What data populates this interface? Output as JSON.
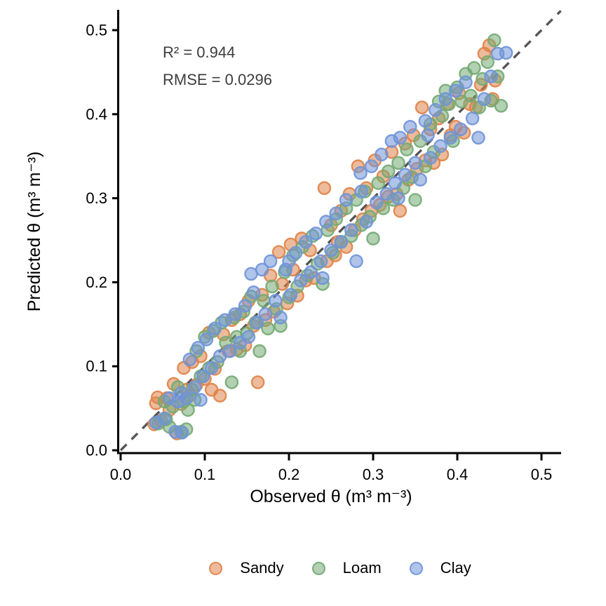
{
  "figure": {
    "background": "#FFFFFF",
    "annotation": {
      "r2": "R² = 0.944",
      "rmse": "RMSE = 0.0296",
      "color": "#3D3D3D"
    },
    "axes": {
      "color": "#000000",
      "x": {
        "label": "Observed θ (m³ m⁻³)",
        "ticks": [
          "0.0",
          "0.1",
          "0.2",
          "0.3",
          "0.4",
          "0.5"
        ],
        "tick_values": [
          0,
          0.1,
          0.2,
          0.3,
          0.4,
          0.5
        ]
      },
      "y": {
        "label": "Predicted θ (m³ m⁻³)",
        "ticks": [
          "0.0",
          "0.1",
          "0.2",
          "0.3",
          "0.4",
          "0.5"
        ],
        "tick_values": [
          0,
          0.1,
          0.2,
          0.3,
          0.4,
          0.5
        ]
      }
    },
    "identity_line": {
      "color": "#565656",
      "dash": [
        12,
        10
      ],
      "from": [
        0,
        0
      ],
      "to": [
        0.523,
        0.523
      ]
    },
    "legend": {
      "position": "bottom"
    }
  },
  "chart_data": {
    "type": "scatter",
    "title": "",
    "xlabel": "Observed θ (m³ m⁻³)",
    "ylabel": "Predicted θ (m³ m⁻³)",
    "xlim": [
      0,
      0.52
    ],
    "ylim": [
      0,
      0.52
    ],
    "grid": false,
    "legend_position": "bottom",
    "r_squared": 0.944,
    "rmse": 0.0296,
    "identity_line": true,
    "series": [
      {
        "name": "Sandy",
        "color": "#DF8348",
        "points": [
          [
            0.042,
            0.056
          ],
          [
            0.048,
            0.035
          ],
          [
            0.055,
            0.062
          ],
          [
            0.058,
            0.048
          ],
          [
            0.044,
            0.063
          ],
          [
            0.063,
            0.079
          ],
          [
            0.04,
            0.031
          ],
          [
            0.067,
            0.02
          ],
          [
            0.072,
            0.055
          ],
          [
            0.075,
            0.098
          ],
          [
            0.078,
            0.072
          ],
          [
            0.082,
            0.065
          ],
          [
            0.085,
            0.105
          ],
          [
            0.09,
            0.078
          ],
          [
            0.095,
            0.112
          ],
          [
            0.1,
            0.085
          ],
          [
            0.105,
            0.14
          ],
          [
            0.108,
            0.072
          ],
          [
            0.112,
            0.097
          ],
          [
            0.118,
            0.065
          ],
          [
            0.122,
            0.138
          ],
          [
            0.128,
            0.118
          ],
          [
            0.132,
            0.155
          ],
          [
            0.138,
            0.12
          ],
          [
            0.142,
            0.162
          ],
          [
            0.148,
            0.125
          ],
          [
            0.152,
            0.178
          ],
          [
            0.158,
            0.148
          ],
          [
            0.163,
            0.081
          ],
          [
            0.168,
            0.185
          ],
          [
            0.172,
            0.155
          ],
          [
            0.178,
            0.208
          ],
          [
            0.182,
            0.165
          ],
          [
            0.188,
            0.236
          ],
          [
            0.192,
            0.198
          ],
          [
            0.198,
            0.175
          ],
          [
            0.202,
            0.245
          ],
          [
            0.205,
            0.215
          ],
          [
            0.21,
            0.184
          ],
          [
            0.215,
            0.252
          ],
          [
            0.22,
            0.202
          ],
          [
            0.225,
            0.238
          ],
          [
            0.23,
            0.205
          ],
          [
            0.242,
            0.312
          ],
          [
            0.245,
            0.225
          ],
          [
            0.25,
            0.268
          ],
          [
            0.255,
            0.232
          ],
          [
            0.258,
            0.248
          ],
          [
            0.262,
            0.285
          ],
          [
            0.268,
            0.242
          ],
          [
            0.272,
            0.305
          ],
          [
            0.278,
            0.262
          ],
          [
            0.282,
            0.338
          ],
          [
            0.288,
            0.275
          ],
          [
            0.292,
            0.312
          ],
          [
            0.298,
            0.285
          ],
          [
            0.302,
            0.345
          ],
          [
            0.308,
            0.292
          ],
          [
            0.312,
            0.326
          ],
          [
            0.318,
            0.302
          ],
          [
            0.322,
            0.355
          ],
          [
            0.328,
            0.305
          ],
          [
            0.332,
            0.285
          ],
          [
            0.338,
            0.365
          ],
          [
            0.342,
            0.322
          ],
          [
            0.348,
            0.375
          ],
          [
            0.352,
            0.335
          ],
          [
            0.358,
            0.408
          ],
          [
            0.362,
            0.345
          ],
          [
            0.368,
            0.382
          ],
          [
            0.372,
            0.342
          ],
          [
            0.378,
            0.395
          ],
          [
            0.382,
            0.352
          ],
          [
            0.388,
            0.412
          ],
          [
            0.392,
            0.375
          ],
          [
            0.398,
            0.385
          ],
          [
            0.402,
            0.425
          ],
          [
            0.408,
            0.378
          ],
          [
            0.415,
            0.412
          ],
          [
            0.422,
            0.408
          ],
          [
            0.428,
            0.435
          ],
          [
            0.432,
            0.472
          ],
          [
            0.438,
            0.482
          ],
          [
            0.442,
            0.418
          ],
          [
            0.445,
            0.44
          ]
        ]
      },
      {
        "name": "Loam",
        "color": "#73AA73",
        "points": [
          [
            0.045,
            0.032
          ],
          [
            0.052,
            0.058
          ],
          [
            0.054,
            0.037
          ],
          [
            0.058,
            0.028
          ],
          [
            0.062,
            0.052
          ],
          [
            0.068,
            0.075
          ],
          [
            0.072,
            0.022
          ],
          [
            0.078,
            0.025
          ],
          [
            0.075,
            0.058
          ],
          [
            0.088,
            0.06
          ],
          [
            0.08,
            0.048
          ],
          [
            0.085,
            0.072
          ],
          [
            0.09,
            0.118
          ],
          [
            0.095,
            0.088
          ],
          [
            0.1,
            0.135
          ],
          [
            0.105,
            0.098
          ],
          [
            0.11,
            0.142
          ],
          [
            0.115,
            0.105
          ],
          [
            0.12,
            0.152
          ],
          [
            0.125,
            0.128
          ],
          [
            0.132,
            0.081
          ],
          [
            0.135,
            0.158
          ],
          [
            0.138,
            0.135
          ],
          [
            0.142,
            0.118
          ],
          [
            0.146,
            0.165
          ],
          [
            0.15,
            0.139
          ],
          [
            0.155,
            0.183
          ],
          [
            0.16,
            0.152
          ],
          [
            0.165,
            0.118
          ],
          [
            0.17,
            0.178
          ],
          [
            0.175,
            0.145
          ],
          [
            0.18,
            0.195
          ],
          [
            0.185,
            0.168
          ],
          [
            0.19,
            0.148
          ],
          [
            0.195,
            0.212
          ],
          [
            0.2,
            0.182
          ],
          [
            0.205,
            0.232
          ],
          [
            0.21,
            0.195
          ],
          [
            0.216,
            0.242
          ],
          [
            0.222,
            0.208
          ],
          [
            0.228,
            0.255
          ],
          [
            0.234,
            0.222
          ],
          [
            0.24,
            0.198
          ],
          [
            0.246,
            0.262
          ],
          [
            0.252,
            0.235
          ],
          [
            0.256,
            0.275
          ],
          [
            0.262,
            0.248
          ],
          [
            0.268,
            0.288
          ],
          [
            0.274,
            0.255
          ],
          [
            0.28,
            0.298
          ],
          [
            0.286,
            0.268
          ],
          [
            0.29,
            0.308
          ],
          [
            0.296,
            0.278
          ],
          [
            0.3,
            0.252
          ],
          [
            0.306,
            0.318
          ],
          [
            0.312,
            0.288
          ],
          [
            0.318,
            0.332
          ],
          [
            0.324,
            0.298
          ],
          [
            0.33,
            0.342
          ],
          [
            0.336,
            0.312
          ],
          [
            0.34,
            0.358
          ],
          [
            0.346,
            0.325
          ],
          [
            0.35,
            0.298
          ],
          [
            0.356,
            0.368
          ],
          [
            0.362,
            0.338
          ],
          [
            0.368,
            0.388
          ],
          [
            0.372,
            0.355
          ],
          [
            0.378,
            0.415
          ],
          [
            0.382,
            0.398
          ],
          [
            0.386,
            0.428
          ],
          [
            0.39,
            0.412
          ],
          [
            0.395,
            0.368
          ],
          [
            0.4,
            0.432
          ],
          [
            0.405,
            0.415
          ],
          [
            0.41,
            0.448
          ],
          [
            0.416,
            0.422
          ],
          [
            0.42,
            0.455
          ],
          [
            0.426,
            0.408
          ],
          [
            0.43,
            0.442
          ],
          [
            0.436,
            0.462
          ],
          [
            0.44,
            0.416
          ],
          [
            0.444,
            0.488
          ],
          [
            0.448,
            0.445
          ],
          [
            0.452,
            0.41
          ]
        ]
      },
      {
        "name": "Clay",
        "color": "#6F93D8",
        "points": [
          [
            0.052,
            0.038
          ],
          [
            0.058,
            0.062
          ],
          [
            0.042,
            0.033
          ],
          [
            0.065,
            0.022
          ],
          [
            0.068,
            0.058
          ],
          [
            0.072,
            0.068
          ],
          [
            0.073,
            0.021
          ],
          [
            0.078,
            0.062
          ],
          [
            0.082,
            0.108
          ],
          [
            0.088,
            0.075
          ],
          [
            0.092,
            0.122
          ],
          [
            0.095,
            0.06
          ],
          [
            0.098,
            0.088
          ],
          [
            0.102,
            0.132
          ],
          [
            0.108,
            0.098
          ],
          [
            0.112,
            0.145
          ],
          [
            0.118,
            0.112
          ],
          [
            0.124,
            0.155
          ],
          [
            0.13,
            0.118
          ],
          [
            0.136,
            0.162
          ],
          [
            0.142,
            0.128
          ],
          [
            0.148,
            0.172
          ],
          [
            0.152,
            0.135
          ],
          [
            0.155,
            0.21
          ],
          [
            0.158,
            0.188
          ],
          [
            0.162,
            0.152
          ],
          [
            0.168,
            0.215
          ],
          [
            0.172,
            0.162
          ],
          [
            0.178,
            0.225
          ],
          [
            0.184,
            0.178
          ],
          [
            0.19,
            0.158
          ],
          [
            0.196,
            0.215
          ],
          [
            0.2,
            0.225
          ],
          [
            0.202,
            0.185
          ],
          [
            0.208,
            0.235
          ],
          [
            0.214,
            0.202
          ],
          [
            0.22,
            0.248
          ],
          [
            0.226,
            0.212
          ],
          [
            0.232,
            0.258
          ],
          [
            0.238,
            0.225
          ],
          [
            0.24,
            0.205
          ],
          [
            0.244,
            0.272
          ],
          [
            0.25,
            0.238
          ],
          [
            0.256,
            0.282
          ],
          [
            0.262,
            0.248
          ],
          [
            0.268,
            0.298
          ],
          [
            0.274,
            0.262
          ],
          [
            0.28,
            0.225
          ],
          [
            0.285,
            0.33
          ],
          [
            0.286,
            0.308
          ],
          [
            0.292,
            0.272
          ],
          [
            0.298,
            0.338
          ],
          [
            0.304,
            0.295
          ],
          [
            0.31,
            0.352
          ],
          [
            0.316,
            0.305
          ],
          [
            0.322,
            0.368
          ],
          [
            0.326,
            0.318
          ],
          [
            0.33,
            0.3
          ],
          [
            0.332,
            0.372
          ],
          [
            0.338,
            0.328
          ],
          [
            0.344,
            0.385
          ],
          [
            0.35,
            0.342
          ],
          [
            0.356,
            0.322
          ],
          [
            0.362,
            0.392
          ],
          [
            0.365,
            0.375
          ],
          [
            0.368,
            0.348
          ],
          [
            0.374,
            0.405
          ],
          [
            0.38,
            0.362
          ],
          [
            0.386,
            0.418
          ],
          [
            0.392,
            0.372
          ],
          [
            0.398,
            0.428
          ],
          [
            0.404,
            0.382
          ],
          [
            0.41,
            0.438
          ],
          [
            0.418,
            0.395
          ],
          [
            0.425,
            0.372
          ],
          [
            0.432,
            0.418
          ],
          [
            0.44,
            0.445
          ],
          [
            0.448,
            0.472
          ],
          [
            0.458,
            0.473
          ]
        ]
      }
    ]
  }
}
